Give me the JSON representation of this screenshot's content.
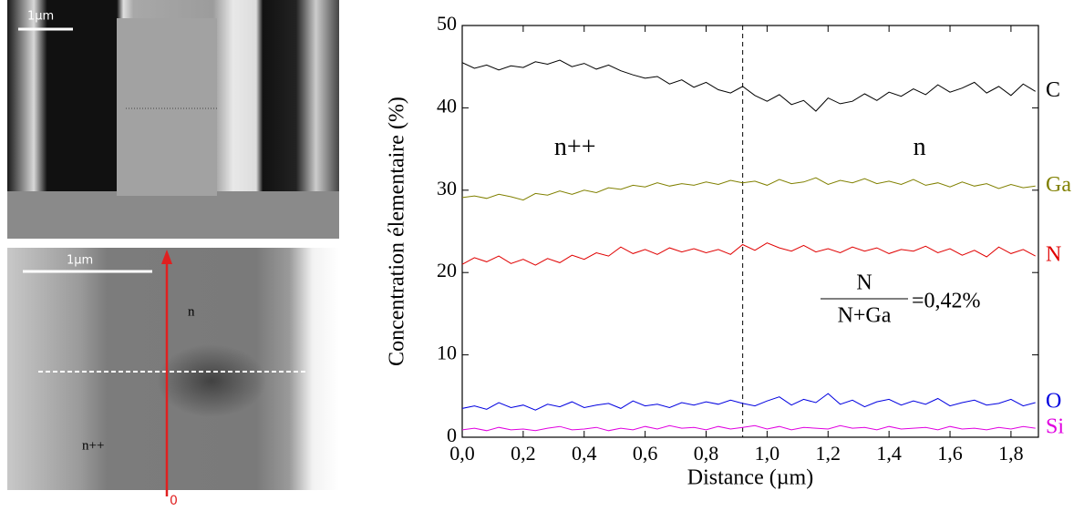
{
  "sem_images": {
    "top": {
      "scale_bar": "1µm"
    },
    "bottom": {
      "scale_bar": "1µm",
      "region_upper": "n",
      "region_lower": "n++",
      "arrow_origin": "0"
    }
  },
  "chart_data": {
    "type": "line",
    "xlabel": "Distance (µm)",
    "ylabel": "Concentration élementaire (%)",
    "xlim": [
      0,
      1.89
    ],
    "ylim": [
      0,
      50
    ],
    "xticks": [
      {
        "value": 0,
        "label": "0,0"
      },
      {
        "value": 0.2,
        "label": "0,2"
      },
      {
        "value": 0.4,
        "label": "0,4"
      },
      {
        "value": 0.6,
        "label": "0,6"
      },
      {
        "value": 0.8,
        "label": "0,8"
      },
      {
        "value": 1.0,
        "label": "1,0"
      },
      {
        "value": 1.2,
        "label": "1,2"
      },
      {
        "value": 1.4,
        "label": "1,4"
      },
      {
        "value": 1.6,
        "label": "1,6"
      },
      {
        "value": 1.8,
        "label": "1,8"
      }
    ],
    "yticks": [
      0,
      10,
      20,
      30,
      40,
      50
    ],
    "divider_x": 0.92,
    "annotations": {
      "left_region": "n++",
      "right_region": "n",
      "ratio_numerator": "N",
      "ratio_denominator": "N+Ga",
      "ratio_value": "=0,42%"
    },
    "x": [
      0,
      0.04,
      0.08,
      0.12,
      0.16,
      0.2,
      0.24,
      0.28,
      0.32,
      0.36,
      0.4,
      0.44,
      0.48,
      0.52,
      0.56,
      0.6,
      0.64,
      0.68,
      0.72,
      0.76,
      0.8,
      0.84,
      0.88,
      0.92,
      0.96,
      1.0,
      1.04,
      1.08,
      1.12,
      1.16,
      1.2,
      1.24,
      1.28,
      1.32,
      1.36,
      1.4,
      1.44,
      1.48,
      1.52,
      1.56,
      1.6,
      1.64,
      1.68,
      1.72,
      1.76,
      1.8,
      1.84,
      1.88
    ],
    "series": [
      {
        "name": "C",
        "color": "#000000",
        "values": [
          45.5,
          44.8,
          45.2,
          44.6,
          45.1,
          44.9,
          45.6,
          45.3,
          45.8,
          45.0,
          45.4,
          44.7,
          45.2,
          44.5,
          44.0,
          43.6,
          43.8,
          42.9,
          43.4,
          42.5,
          43.1,
          42.2,
          41.8,
          42.6,
          41.5,
          40.8,
          41.6,
          40.4,
          40.9,
          39.6,
          41.2,
          40.5,
          40.8,
          41.7,
          40.9,
          41.9,
          41.4,
          42.3,
          41.6,
          42.8,
          41.9,
          42.4,
          43.1,
          41.8,
          42.6,
          41.5,
          42.9,
          42.0
        ]
      },
      {
        "name": "Ga",
        "color": "#808000",
        "values": [
          29.1,
          29.3,
          29.0,
          29.5,
          29.2,
          28.8,
          29.6,
          29.4,
          29.9,
          29.5,
          30.0,
          29.7,
          30.3,
          30.1,
          30.6,
          30.4,
          30.9,
          30.5,
          30.8,
          30.6,
          31.0,
          30.7,
          31.2,
          30.9,
          31.1,
          30.6,
          31.3,
          30.8,
          31.0,
          31.5,
          30.7,
          31.2,
          30.9,
          31.4,
          30.8,
          31.1,
          30.7,
          31.3,
          30.6,
          30.9,
          30.4,
          31.0,
          30.5,
          30.8,
          30.2,
          30.7,
          30.3,
          30.5
        ]
      },
      {
        "name": "N",
        "color": "#e00000",
        "values": [
          21.0,
          21.8,
          21.3,
          22.0,
          21.1,
          21.6,
          20.9,
          21.7,
          21.2,
          22.1,
          21.6,
          22.4,
          22.0,
          23.1,
          22.3,
          22.8,
          22.2,
          23.0,
          22.5,
          22.9,
          22.4,
          22.8,
          22.2,
          23.4,
          22.7,
          23.6,
          23.0,
          22.6,
          23.3,
          22.5,
          22.9,
          22.4,
          23.1,
          22.6,
          23.0,
          22.3,
          22.8,
          22.6,
          23.2,
          22.4,
          22.9,
          22.1,
          22.7,
          21.9,
          23.1,
          22.3,
          22.8,
          22.0
        ]
      },
      {
        "name": "O",
        "color": "#0000e0",
        "values": [
          3.5,
          3.8,
          3.4,
          4.2,
          3.6,
          3.9,
          3.3,
          4.0,
          3.7,
          4.3,
          3.6,
          3.9,
          4.1,
          3.5,
          4.4,
          3.8,
          4.0,
          3.6,
          4.2,
          3.9,
          4.3,
          4.0,
          4.5,
          4.1,
          3.8,
          4.4,
          4.9,
          3.9,
          4.6,
          4.2,
          5.3,
          4.0,
          4.5,
          3.7,
          4.3,
          4.6,
          3.9,
          4.4,
          4.0,
          4.7,
          3.8,
          4.2,
          4.5,
          3.9,
          4.1,
          4.6,
          3.8,
          4.2
        ]
      },
      {
        "name": "Si",
        "color": "#e000e0",
        "values": [
          0.9,
          1.1,
          0.8,
          1.2,
          0.9,
          1.0,
          0.8,
          1.1,
          1.3,
          0.9,
          1.0,
          1.2,
          0.8,
          1.1,
          0.9,
          1.3,
          1.0,
          1.4,
          1.1,
          1.2,
          0.9,
          1.3,
          1.0,
          1.2,
          1.4,
          1.0,
          1.3,
          0.9,
          1.2,
          1.1,
          1.0,
          1.4,
          1.1,
          1.2,
          0.9,
          1.3,
          1.0,
          1.1,
          1.2,
          0.9,
          1.3,
          1.0,
          1.1,
          0.9,
          1.2,
          1.0,
          1.3,
          1.1
        ]
      }
    ]
  }
}
